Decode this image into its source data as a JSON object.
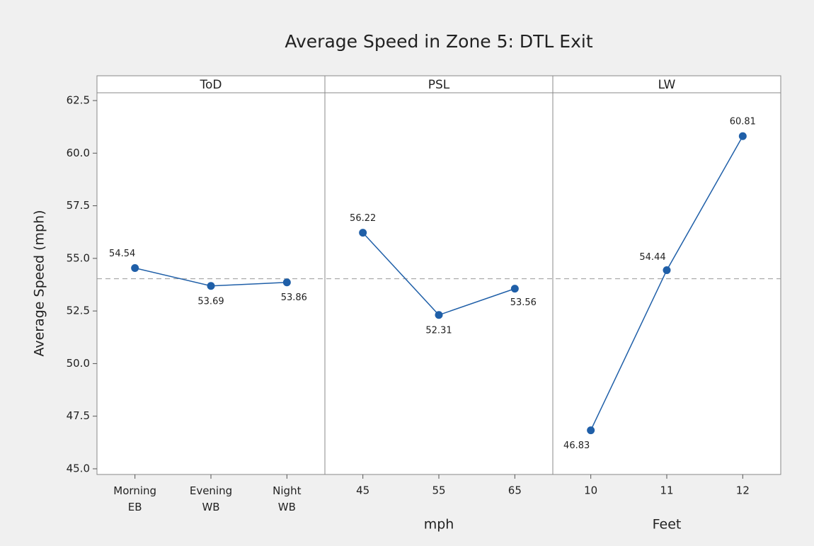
{
  "chart_data": {
    "type": "line",
    "title": "Average Speed in Zone 5: DTL Exit",
    "ylabel": "Average Speed (mph)",
    "ylim": [
      44.73,
      62.87
    ],
    "yticks": [
      {
        "value": 45,
        "label": "45.0"
      },
      47.5,
      {
        "value": 50,
        "label": "50.0"
      },
      52.5,
      {
        "value": 55,
        "label": "55.0"
      },
      57.5,
      {
        "value": 60,
        "label": "60.0"
      },
      62.5
    ],
    "reference_line": 54.03,
    "color": "#1f5fa8",
    "panels": [
      {
        "name": "ToD",
        "categories": [
          "Morning\nEB",
          "Evening\nWB",
          "Night\nWB"
        ],
        "values": [
          54.54,
          53.69,
          53.86
        ]
      },
      {
        "name": "PSL",
        "xlabel": "mph",
        "categories": [
          "45",
          "55",
          "65"
        ],
        "values": [
          56.22,
          52.31,
          53.56
        ]
      },
      {
        "name": "LW",
        "xlabel": "Feet",
        "categories": [
          "10",
          "11",
          "12"
        ],
        "values": [
          46.83,
          54.44,
          60.81
        ]
      }
    ]
  }
}
